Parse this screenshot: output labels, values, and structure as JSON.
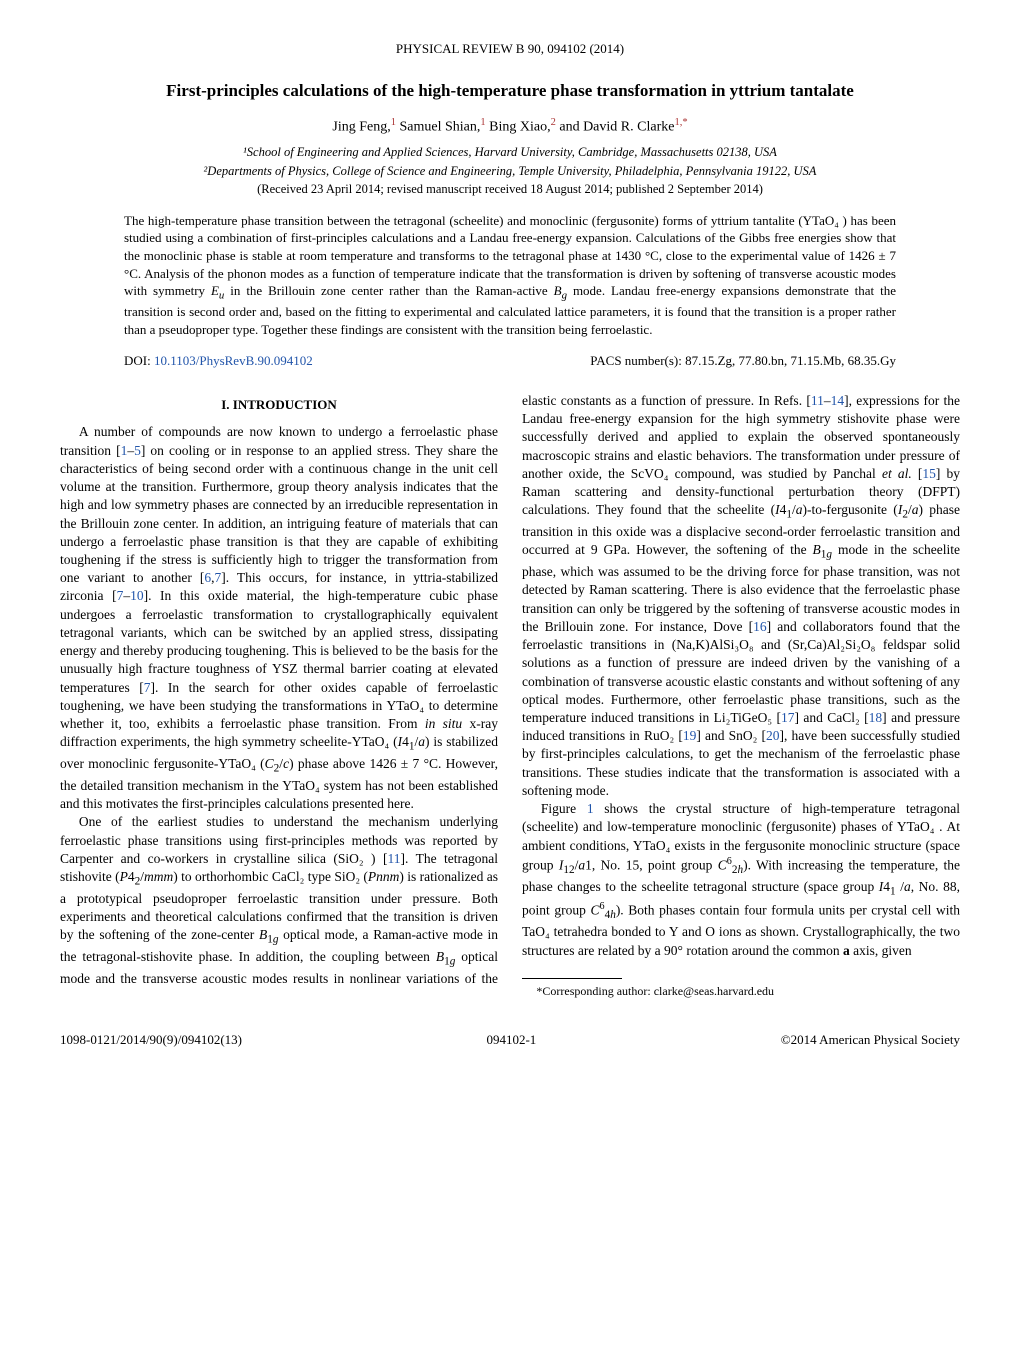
{
  "header": "PHYSICAL REVIEW B 90, 094102 (2014)",
  "title": "First-principles calculations of the high-temperature phase transformation in yttrium tantalate",
  "authors_html": "Jing Feng,<sup class='sup-red'>1</sup> Samuel Shian,<sup class='sup-red'>1</sup> Bing Xiao,<sup class='sup-red'>2</sup> and David R. Clarke<sup class='sup-red'>1,*</sup>",
  "affiliations": [
    "¹School of Engineering and Applied Sciences, Harvard University, Cambridge, Massachusetts 02138, USA",
    "²Departments of Physics, College of Science and Engineering, Temple University, Philadelphia, Pennsylvania 19122, USA"
  ],
  "dates": "(Received 23 April 2014; revised manuscript received 18 August 2014; published 2 September 2014)",
  "abstract_html": "The high-temperature phase transition between the tetragonal (scheelite) and monoclinic (fergusonite) forms of yttrium tantalite (YTaO₄ ) has been studied using a combination of first-principles calculations and a Landau free-energy expansion. Calculations of the Gibbs free energies show that the monoclinic phase is stable at room temperature and transforms to the tetragonal phase at 1430 °C, close to the experimental value of 1426 ± 7 °C. Analysis of the phonon modes as a function of temperature indicate that the transformation is driven by softening of transverse acoustic modes with symmetry <i>E<sub>u</sub></i> in the Brillouin zone center rather than the Raman-active <i>B<sub>g</sub></i> mode. Landau free-energy expansions demonstrate that the transition is second order and, based on the fitting to experimental and calculated lattice parameters, it is found that the transition is a proper rather than a pseudoproper type. Together these findings are consistent with the transition being ferroelastic.",
  "doi_label": "DOI: ",
  "doi_link": "10.1103/PhysRevB.90.094102",
  "pacs": "PACS number(s): 87.15.Zg, 77.80.bn, 71.15.Mb, 68.35.Gy",
  "section_heading": "I. INTRODUCTION",
  "body_paragraphs_html": [
    "A number of compounds are now known to undergo a ferroelastic phase transition [<span class='link'>1</span>–<span class='link'>5</span>] on cooling or in response to an applied stress. They share the characteristics of being second order with a continuous change in the unit cell volume at the transition. Furthermore, group theory analysis indicates that the high and low symmetry phases are connected by an irreducible representation in the Brillouin zone center. In addition, an intriguing feature of materials that can undergo a ferroelastic phase transition is that they are capable of exhibiting toughening if the stress is sufficiently high to trigger the transformation from one variant to another [<span class='link'>6</span>,<span class='link'>7</span>]. This occurs, for instance, in yttria-stabilized zirconia [<span class='link'>7</span>–<span class='link'>10</span>]. In this oxide material, the high-temperature cubic phase undergoes a ferroelastic transformation to crystallographically equivalent tetragonal variants, which can be switched by an applied stress, dissipating energy and thereby producing toughening. This is believed to be the basis for the unusually high fracture toughness of YSZ thermal barrier coating at elevated temperatures [<span class='link'>7</span>]. In the search for other oxides capable of ferroelastic toughening, we have been studying the transformations in YTaO₄ to determine whether it, too, exhibits a ferroelastic phase transition. From <i>in situ</i> x-ray diffraction experiments, the high symmetry scheelite-YTaO₄ (<i>I</i>4<sub>1</sub>/<i>a</i>) is stabilized over monoclinic fergusonite-YTaO₄ (<i>C</i><sub>2</sub>/<i>c</i>) phase above 1426 ± 7 °C. However, the detailed transition mechanism in the YTaO₄ system has not been established and this motivates the first-principles calculations presented here.",
    "One of the earliest studies to understand the mechanism underlying ferroelastic phase transitions using first-principles methods was reported by Carpenter and co-workers in crystalline silica (SiO₂ ) [<span class='link'>11</span>]. The tetragonal stishovite (<i>P</i>4<sub>2</sub>/<i>mmm</i>) to orthorhombic CaCl₂ type SiO₂ (<i>Pnnm</i>) is rationalized as a prototypical pseudoproper ferroelastic transition under pressure. Both experiments and theoretical calculations confirmed that the transition is driven by the softening of the zone-center <i>B</i><sub>1<i>g</i></sub> optical mode, a Raman-active mode in the tetragonal-stishovite phase. In addition, the coupling between <i>B</i><sub>1<i>g</i></sub> optical mode and the transverse acoustic modes results in nonlinear variations of the elastic constants as a function of pressure. In Refs. [<span class='link'>11</span>–<span class='link'>14</span>], expressions for the Landau free-energy expansion for the high symmetry stishovite phase were successfully derived and applied to explain the observed spontaneously macroscopic strains and elastic behaviors. The transformation under pressure of another oxide, the ScVO₄ compound, was studied by Panchal <i>et al.</i> [<span class='link'>15</span>] by Raman scattering and density-functional perturbation theory (DFPT) calculations. They found that the scheelite (<i>I</i>4<sub>1</sub>/<i>a</i>)-to-fergusonite (<i>I</i><sub>2</sub>/<i>a</i>) phase transition in this oxide was a displacive second-order ferroelastic transition and occurred at 9 GPa. However, the softening of the <i>B</i><sub>1<i>g</i></sub> mode in the scheelite phase, which was assumed to be the driving force for phase transition, was not detected by Raman scattering. There is also evidence that the ferroelastic phase transition can only be triggered by the softening of transverse acoustic modes in the Brillouin zone. For instance, Dove [<span class='link'>16</span>] and collaborators found that the ferroelastic transitions in (Na,K)AlSi₃O₈ and (Sr,Ca)Al₂Si₂O₈ feldspar solid solutions as a function of pressure are indeed driven by the vanishing of a combination of transverse acoustic elastic constants and without softening of any optical modes. Furthermore, other ferroelastic phase transitions, such as the temperature induced transitions in Li₂TiGeO₅ [<span class='link'>17</span>] and CaCl₂ [<span class='link'>18</span>] and pressure induced transitions in RuO₂ [<span class='link'>19</span>] and SnO₂ [<span class='link'>20</span>], have been successfully studied by first-principles calculations, to get the mechanism of the ferroelastic phase transitions. These studies indicate that the transformation is associated with a softening mode.",
    "Figure <span class='link'>1</span> shows the crystal structure of high-temperature tetragonal (scheelite) and low-temperature monoclinic (fergusonite) phases of YTaO₄ . At ambient conditions, YTaO₄ exists in the fergusonite monoclinic structure (space group <i>I</i><sub>12</sub>/<i>a</i>1, No. 15, point group <i>C</i><sup>6</sup><sub>2<i>h</i></sub>). With increasing the temperature, the phase changes to the scheelite tetragonal structure (space group <i>I</i>4<sub>1</sub> /<i>a</i>, No. 88, point group <i>C</i><sup>6</sup><sub>4<i>h</i></sub>). Both phases contain four formula units per crystal cell with TaO₄ tetrahedra bonded to Y and O ions as shown. Crystallographically, the two structures are related by a 90° rotation around the common <b>a</b> axis, given"
  ],
  "footnote": "*Corresponding author: clarke@seas.harvard.edu",
  "footer": {
    "left": "1098-0121/2014/90(9)/094102(13)",
    "center": "094102-1",
    "right": "©2014 American Physical Society"
  }
}
